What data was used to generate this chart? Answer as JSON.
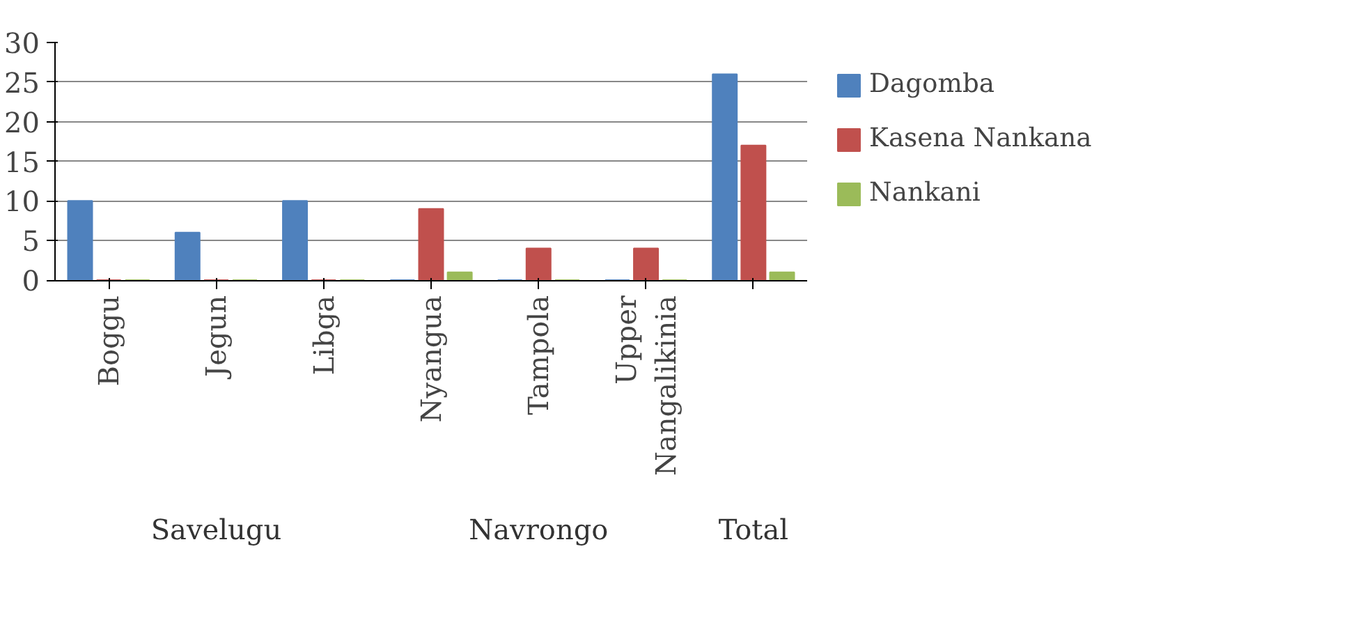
{
  "chart_data": {
    "type": "bar",
    "categories": [
      "Boggu",
      "Jegun",
      "Libga",
      "Nyangua",
      "Tampola",
      "Upper Nangalikinia",
      null
    ],
    "series": [
      {
        "name": "Dagomba",
        "color": "#4f81bd",
        "values": [
          10,
          6,
          10,
          0,
          0,
          0,
          26
        ]
      },
      {
        "name": "Kasena Nankana",
        "color": "#c0504d",
        "values": [
          0,
          0,
          0,
          9,
          4,
          4,
          17
        ]
      },
      {
        "name": "Nankani",
        "color": "#9bbb59",
        "values": [
          0,
          0,
          0,
          1,
          0,
          0,
          1
        ]
      }
    ],
    "ylim": [
      0,
      30
    ],
    "yticks": [
      0,
      5,
      10,
      15,
      20,
      25,
      30
    ],
    "grid": "y",
    "legend": "right",
    "annotations": [
      "Savelugu",
      "Navrongo",
      "Total"
    ]
  }
}
